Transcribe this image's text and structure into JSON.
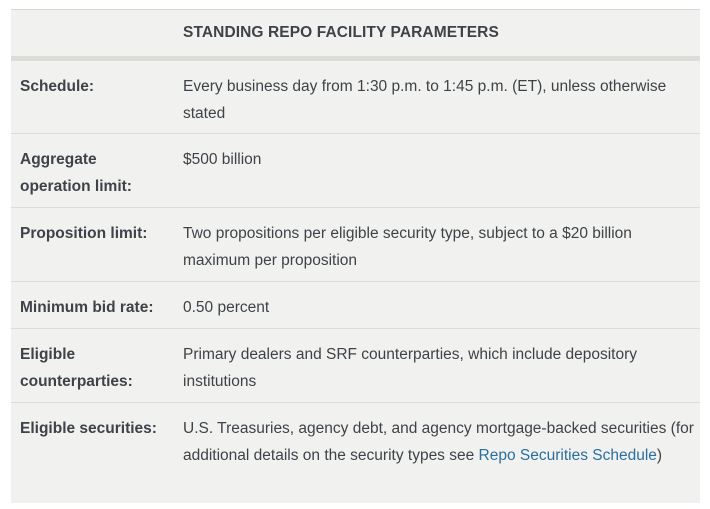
{
  "table": {
    "title": "STANDING REPO FACILITY PARAMETERS",
    "rows": [
      {
        "label": "Schedule:",
        "value": "Every business day from 1:30 p.m. to 1:45 p.m. (ET), unless otherwise stated"
      },
      {
        "label": "Aggregate operation limit:",
        "value": "$500 billion"
      },
      {
        "label": "Proposition limit:",
        "value": "Two propositions per eligible security type, subject to a $20 billion maximum per proposition"
      },
      {
        "label": "Minimum bid rate:",
        "value": "0.50 percent"
      },
      {
        "label": "Eligible counterparties:",
        "value": "Primary dealers and SRF counterparties, which include depository institutions"
      },
      {
        "label": "Eligible securities:",
        "value_pre": "U.S. Treasuries, agency debt, and agency mortgage-backed securities (for additional details on the security types see ",
        "link": "Repo Securities Schedule",
        "value_post": ")"
      }
    ]
  },
  "colors": {
    "table_bg": "#f1f1ef",
    "text": "#3d4348",
    "link": "#2a6fa0",
    "border": "#dcdcd8"
  }
}
